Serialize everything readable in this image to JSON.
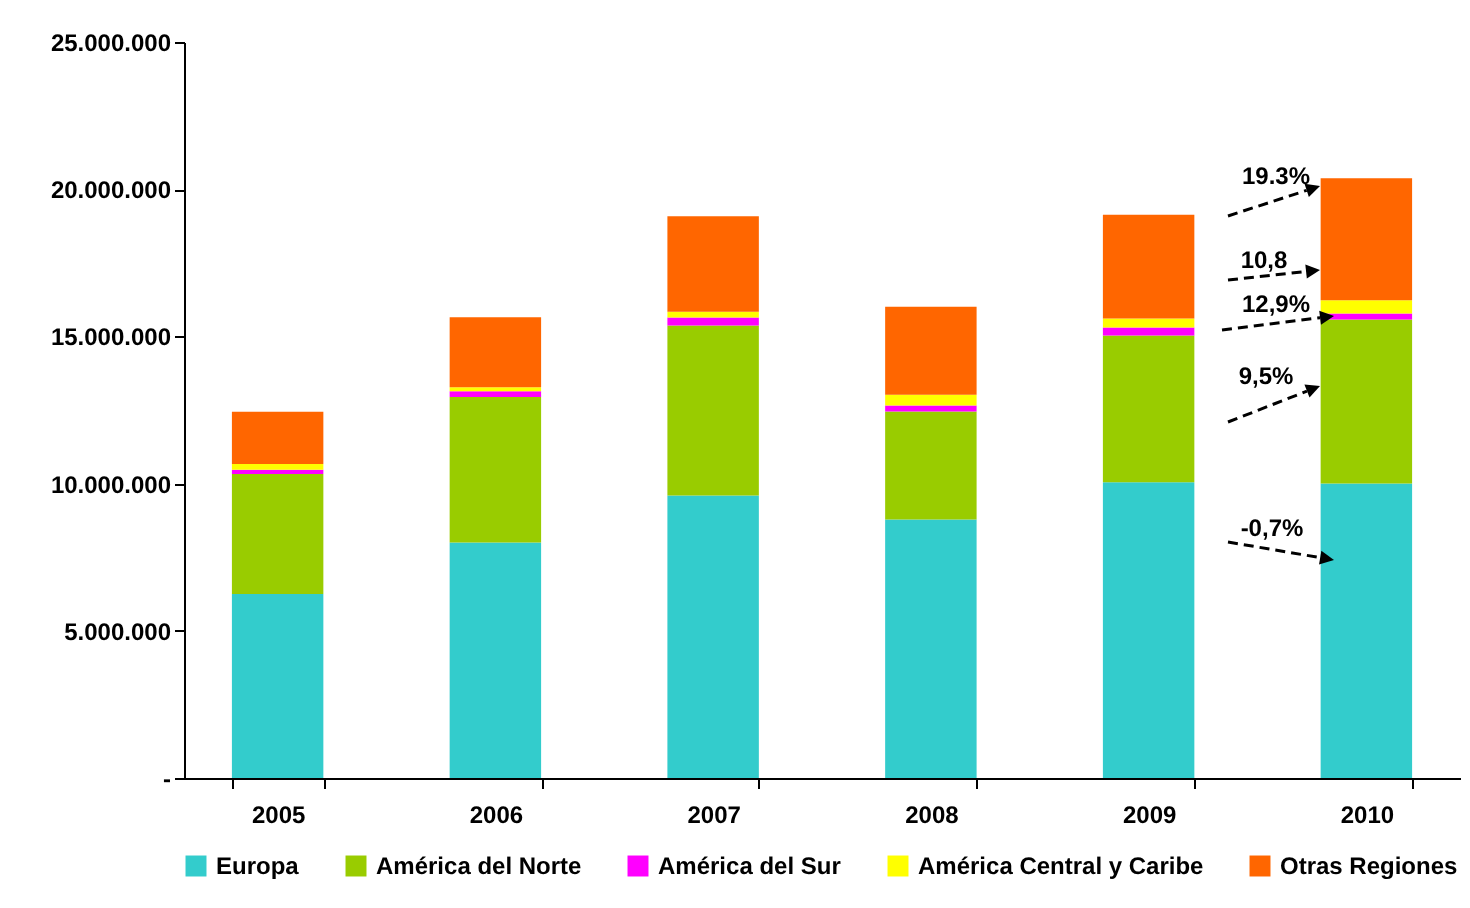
{
  "chart_data": {
    "type": "bar",
    "stacked": true,
    "categories": [
      "2005",
      "2006",
      "2007",
      "2008",
      "2009",
      "2010"
    ],
    "series": [
      {
        "name": "Europa",
        "color": "#33cccc",
        "values": [
          6250000,
          8000000,
          9600000,
          8780000,
          10050000,
          10000000
        ]
      },
      {
        "name": "América del Norte",
        "color": "#99cc00",
        "values": [
          4080000,
          4940000,
          5770000,
          3670000,
          4980000,
          5570000
        ]
      },
      {
        "name": "América del Sur",
        "color": "#ff00ff",
        "values": [
          140000,
          200000,
          270000,
          200000,
          270000,
          210000
        ]
      },
      {
        "name": "América Central y Caribe",
        "color": "#ffff00",
        "values": [
          200000,
          130000,
          200000,
          370000,
          310000,
          450000
        ]
      },
      {
        "name": "Otras Regiones",
        "color": "#ff6600",
        "values": [
          1770000,
          2380000,
          3240000,
          2990000,
          3520000,
          4140000
        ]
      }
    ],
    "ylim": [
      0,
      25000000
    ],
    "yticks": [
      {
        "value": 0,
        "label": "-"
      },
      {
        "value": 5000000,
        "label": "5.000.000"
      },
      {
        "value": 10000000,
        "label": "10.000.000"
      },
      {
        "value": 15000000,
        "label": "15.000.000"
      },
      {
        "value": 20000000,
        "label": "20.000.000"
      },
      {
        "value": 25000000,
        "label": "25.000.000"
      }
    ],
    "annotations": [
      "19.3%",
      "10,8",
      "12,9%",
      "9,5%",
      "-0,7%"
    ],
    "grid": false,
    "legend": "bottom"
  }
}
